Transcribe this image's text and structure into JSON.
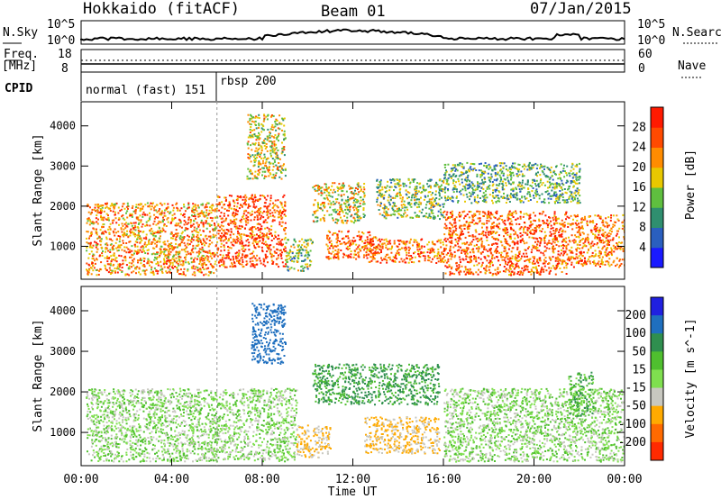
{
  "header": {
    "station": "Hokkaido (fitACF)",
    "beam": "Beam 01",
    "date": "07/Jan/2015"
  },
  "noise_panel": {
    "left_label": "N.Sky",
    "right_label": "N.Search",
    "tick_top": "10^5",
    "tick_bottom": "10^0"
  },
  "freq_panel": {
    "left_label_1": "Freq.",
    "left_label_2": "[MHz]",
    "left_ticks": [
      "18",
      "8"
    ],
    "right_ticks": [
      "60",
      "0"
    ],
    "right_label": "Nave"
  },
  "cpid_panel": {
    "label": "CPID",
    "modes": [
      {
        "name": "normal (fast) 151",
        "start_hour": 0,
        "end_hour": 6
      },
      {
        "name": "rbsp 200",
        "start_hour": 6,
        "end_hour": 24
      }
    ]
  },
  "chart_data": [
    {
      "type": "heatmap",
      "title": "Power",
      "xlabel": "Time UT",
      "ylabel": "Slant Range [km]",
      "x_ticks": [
        "00:00",
        "04:00",
        "08:00",
        "12:00",
        "16:00",
        "20:00",
        "00:00"
      ],
      "xlim_hours": [
        0,
        24
      ],
      "y_ticks": [
        1000,
        2000,
        3000,
        4000
      ],
      "ylim": [
        180,
        4600
      ],
      "colorbar_label": "Power [dB]",
      "colorbar_ticks": [
        4,
        8,
        12,
        16,
        20,
        24,
        28
      ],
      "colorbar_colors": [
        "#1a1aff",
        "#2a5fbf",
        "#2f8f6f",
        "#5fbf3f",
        "#e8c800",
        "#ff8c00",
        "#ff4a00",
        "#ff1a00"
      ],
      "scatter_regions": [
        {
          "x": [
            0.2,
            6.0
          ],
          "range": [
            300,
            2100
          ],
          "value": 22
        },
        {
          "x": [
            6.0,
            9.0
          ],
          "range": [
            500,
            2300
          ],
          "value": 26
        },
        {
          "x": [
            7.3,
            9.0
          ],
          "range": [
            2700,
            4300
          ],
          "value": 18
        },
        {
          "x": [
            9.0,
            10.2
          ],
          "range": [
            400,
            1200
          ],
          "value": 14
        },
        {
          "x": [
            10.2,
            12.5
          ],
          "range": [
            1600,
            2600
          ],
          "value": 18
        },
        {
          "x": [
            10.8,
            13.0
          ],
          "range": [
            700,
            1400
          ],
          "value": 26
        },
        {
          "x": [
            12.5,
            16.0
          ],
          "range": [
            600,
            1200
          ],
          "value": 24
        },
        {
          "x": [
            13.0,
            16.0
          ],
          "range": [
            1700,
            2700
          ],
          "value": 14
        },
        {
          "x": [
            16.0,
            21.5
          ],
          "range": [
            300,
            1900
          ],
          "value": 26
        },
        {
          "x": [
            16.0,
            22.0
          ],
          "range": [
            2100,
            3100
          ],
          "value": 12
        },
        {
          "x": [
            21.5,
            24.0
          ],
          "range": [
            500,
            1800
          ],
          "value": 24
        }
      ]
    },
    {
      "type": "heatmap",
      "title": "Velocity",
      "xlabel": "Time UT",
      "ylabel": "Slant Range [km]",
      "x_ticks": [
        "00:00",
        "04:00",
        "08:00",
        "12:00",
        "16:00",
        "20:00",
        "00:00"
      ],
      "xlim_hours": [
        0,
        24
      ],
      "y_ticks": [
        1000,
        2000,
        3000,
        4000
      ],
      "ylim": [
        180,
        4600
      ],
      "colorbar_label": "Velocity [m s^-1]",
      "colorbar_ticks": [
        200,
        100,
        50,
        15,
        -15,
        -50,
        -100,
        -200
      ],
      "colorbar_colors": [
        "#2020e0",
        "#1f6fbf",
        "#2f8f4f",
        "#4fbf2f",
        "#7fdf4f",
        "#c8c8c0",
        "#ffaa00",
        "#ff6a00",
        "#ff2a00"
      ],
      "scatter_regions": [
        {
          "x": [
            0.2,
            9.5
          ],
          "range": [
            300,
            2100
          ],
          "value": 0
        },
        {
          "x": [
            7.5,
            9.0
          ],
          "range": [
            2700,
            4200
          ],
          "value": 150
        },
        {
          "x": [
            9.5,
            11.0
          ],
          "range": [
            400,
            1200
          ],
          "value": -60
        },
        {
          "x": [
            10.2,
            15.8
          ],
          "range": [
            1700,
            2700
          ],
          "value": 60
        },
        {
          "x": [
            12.5,
            15.8
          ],
          "range": [
            500,
            1400
          ],
          "value": -60
        },
        {
          "x": [
            16.0,
            24.0
          ],
          "range": [
            300,
            2100
          ],
          "value": 0
        },
        {
          "x": [
            21.5,
            22.6
          ],
          "range": [
            1400,
            2500
          ],
          "value": 40
        }
      ]
    }
  ]
}
